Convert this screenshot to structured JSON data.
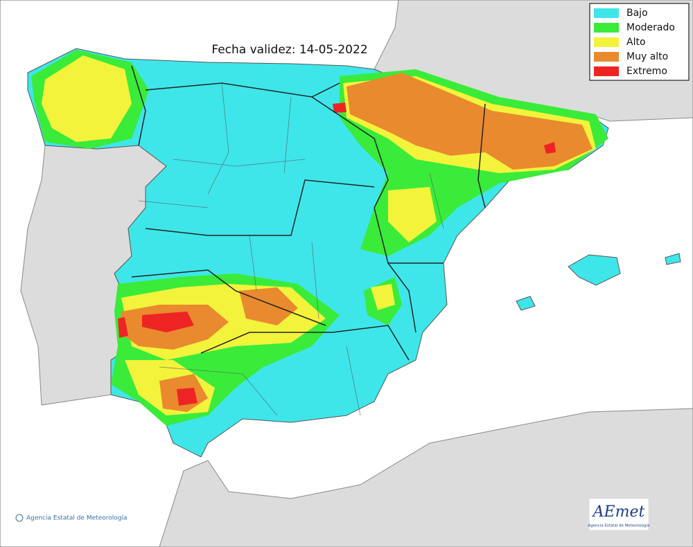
{
  "title": "Fecha validez: 14-05-2022",
  "legend": [
    {
      "label": "Bajo",
      "color": "#3ee6ea"
    },
    {
      "label": "Moderado",
      "color": "#3aeb3a"
    },
    {
      "label": "Alto",
      "color": "#f3f33c"
    },
    {
      "label": "Muy alto",
      "color": "#e98a2e"
    },
    {
      "label": "Extremo",
      "color": "#ee2424"
    }
  ],
  "credit": "Agencia Estatal de Meteorología",
  "logo": {
    "text": "AEmet",
    "subtitle": "Agencia Estatal de Meteorología"
  }
}
